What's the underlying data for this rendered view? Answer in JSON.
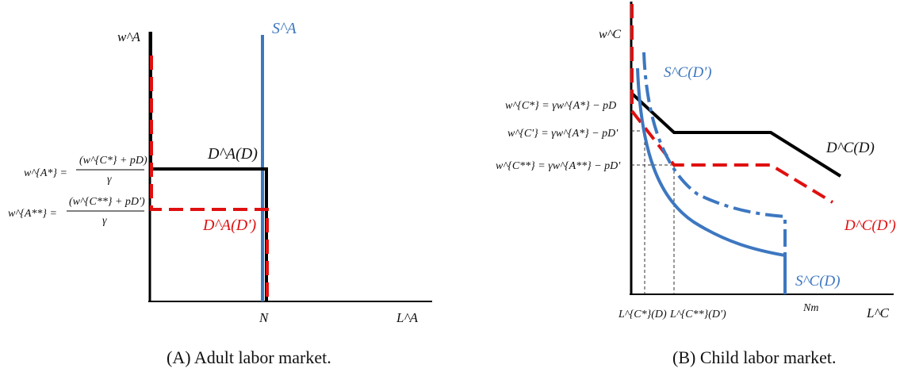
{
  "panel_a": {
    "caption": "(A) Adult labor market.",
    "y_axis_label": "w^A",
    "x_axis_label": "L^A",
    "supply_label": "S^A",
    "demand_label": "D^A(D)",
    "demand2_label": "D^A(D')",
    "n_label": "N",
    "wage1_lhs": "w^{A*} =",
    "wage1_num": "(w^{C*} + pD)",
    "wage1_den": "γ",
    "wage2_lhs": "w^{A**} =",
    "wage2_num": "(w^{C**} + pD')",
    "wage2_den": "γ"
  },
  "panel_b": {
    "caption": "(B) Child labor market.",
    "y_axis_label": "w^C",
    "x_axis_label": "L^C",
    "supply_label": "S^C(D)",
    "supply2_label": "S^C(D')",
    "demand_label": "D^C(D)",
    "demand2_label": "D^C(D')",
    "wage1": "w^{C*} = γw^{A*} − pD",
    "wage2": "w^{C'} = γw^{A*} − pD'",
    "wage3": "w^{C**} = γw^{A**} − pD'",
    "lc1": "L^{C*}(D)",
    "lc2": "L^{C**}(D')",
    "nm": "Nm"
  },
  "colors": {
    "demand": "#000000",
    "demand_alt": "#e01010",
    "supply": "#3d77c0"
  }
}
